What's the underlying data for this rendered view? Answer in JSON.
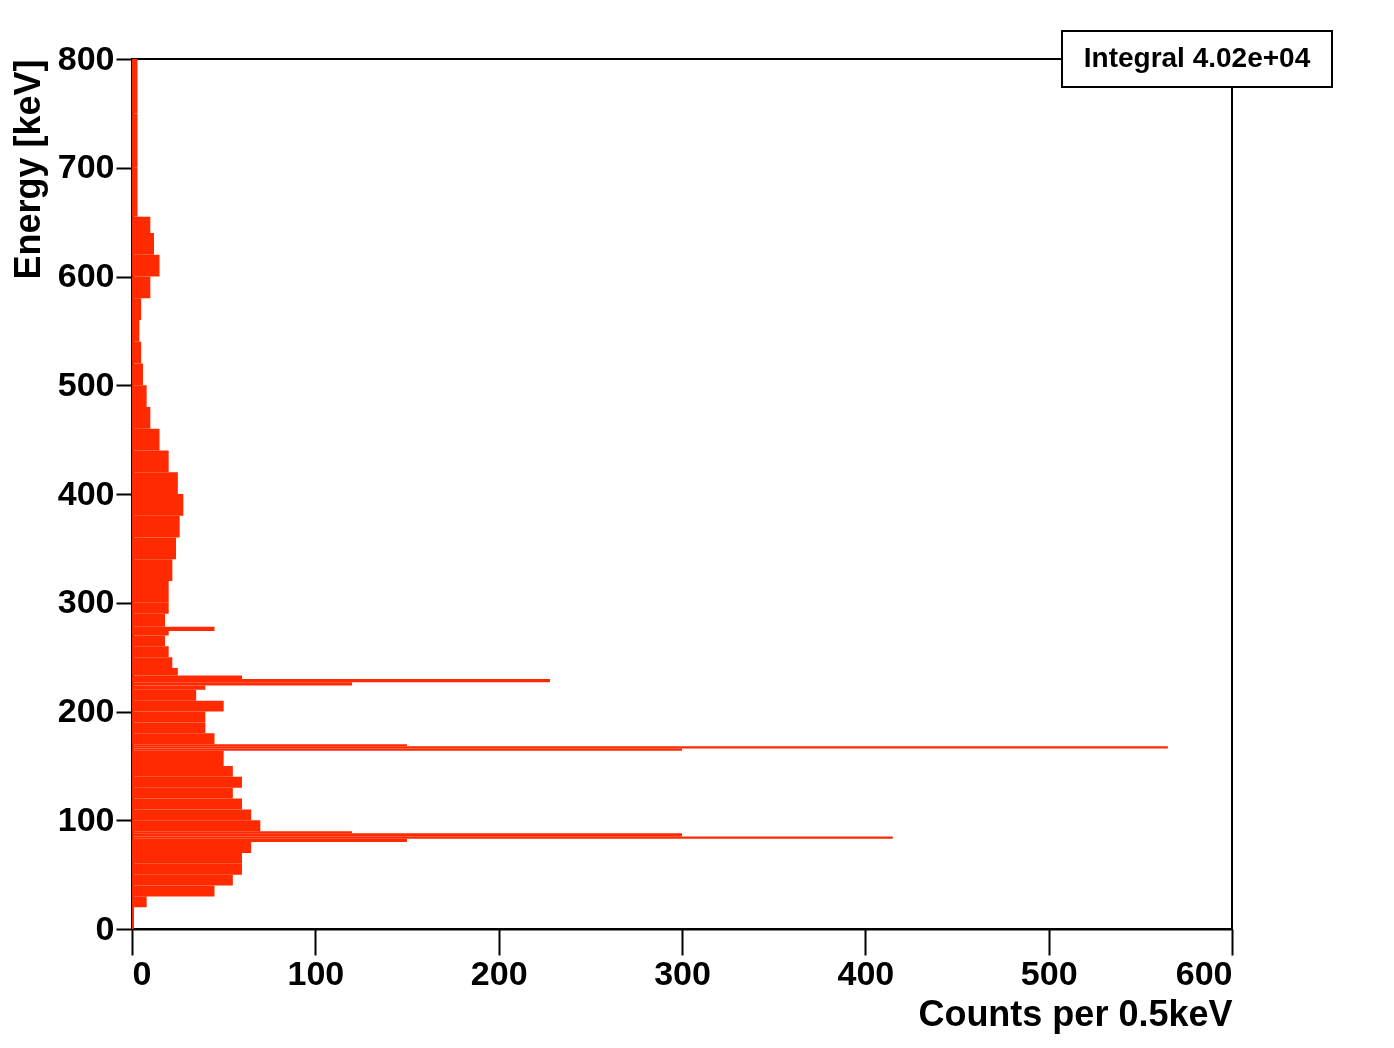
{
  "chart_data": {
    "type": "histogram",
    "orientation": "horizontal",
    "xlabel": "Counts per 0.5keV",
    "ylabel": "Energy [keV]",
    "annotations": [
      "Integral 4.02e+04"
    ],
    "color": "#ff2a00",
    "bins": [
      0,
      10,
      20,
      30,
      40,
      50,
      60,
      70,
      80,
      83,
      85,
      88,
      90,
      100,
      110,
      120,
      130,
      140,
      150,
      160,
      164,
      166,
      168,
      170,
      180,
      190,
      200,
      210,
      220,
      224,
      227,
      230,
      233,
      240,
      250,
      260,
      270,
      274,
      278,
      290,
      300,
      320,
      340,
      360,
      380,
      400,
      420,
      440,
      460,
      480,
      500,
      520,
      540,
      560,
      580,
      600,
      620,
      640,
      655,
      700,
      750,
      800
    ],
    "values": [
      1,
      1,
      8,
      45,
      55,
      60,
      60,
      65,
      150,
      415,
      300,
      120,
      70,
      65,
      60,
      55,
      60,
      55,
      50,
      50,
      300,
      565,
      150,
      45,
      40,
      40,
      50,
      35,
      40,
      120,
      228,
      60,
      25,
      22,
      20,
      18,
      20,
      45,
      18,
      20,
      20,
      22,
      24,
      26,
      28,
      25,
      20,
      15,
      10,
      8,
      6,
      5,
      4,
      5,
      10,
      15,
      12,
      10,
      3,
      3,
      3
    ],
    "xlim": [
      0,
      600
    ],
    "xticks": [
      0,
      100,
      200,
      300,
      400,
      500,
      600
    ],
    "ylim": [
      0,
      800
    ],
    "yticks": [
      0,
      100,
      200,
      300,
      400,
      500,
      600,
      700,
      800
    ],
    "grid": false
  }
}
